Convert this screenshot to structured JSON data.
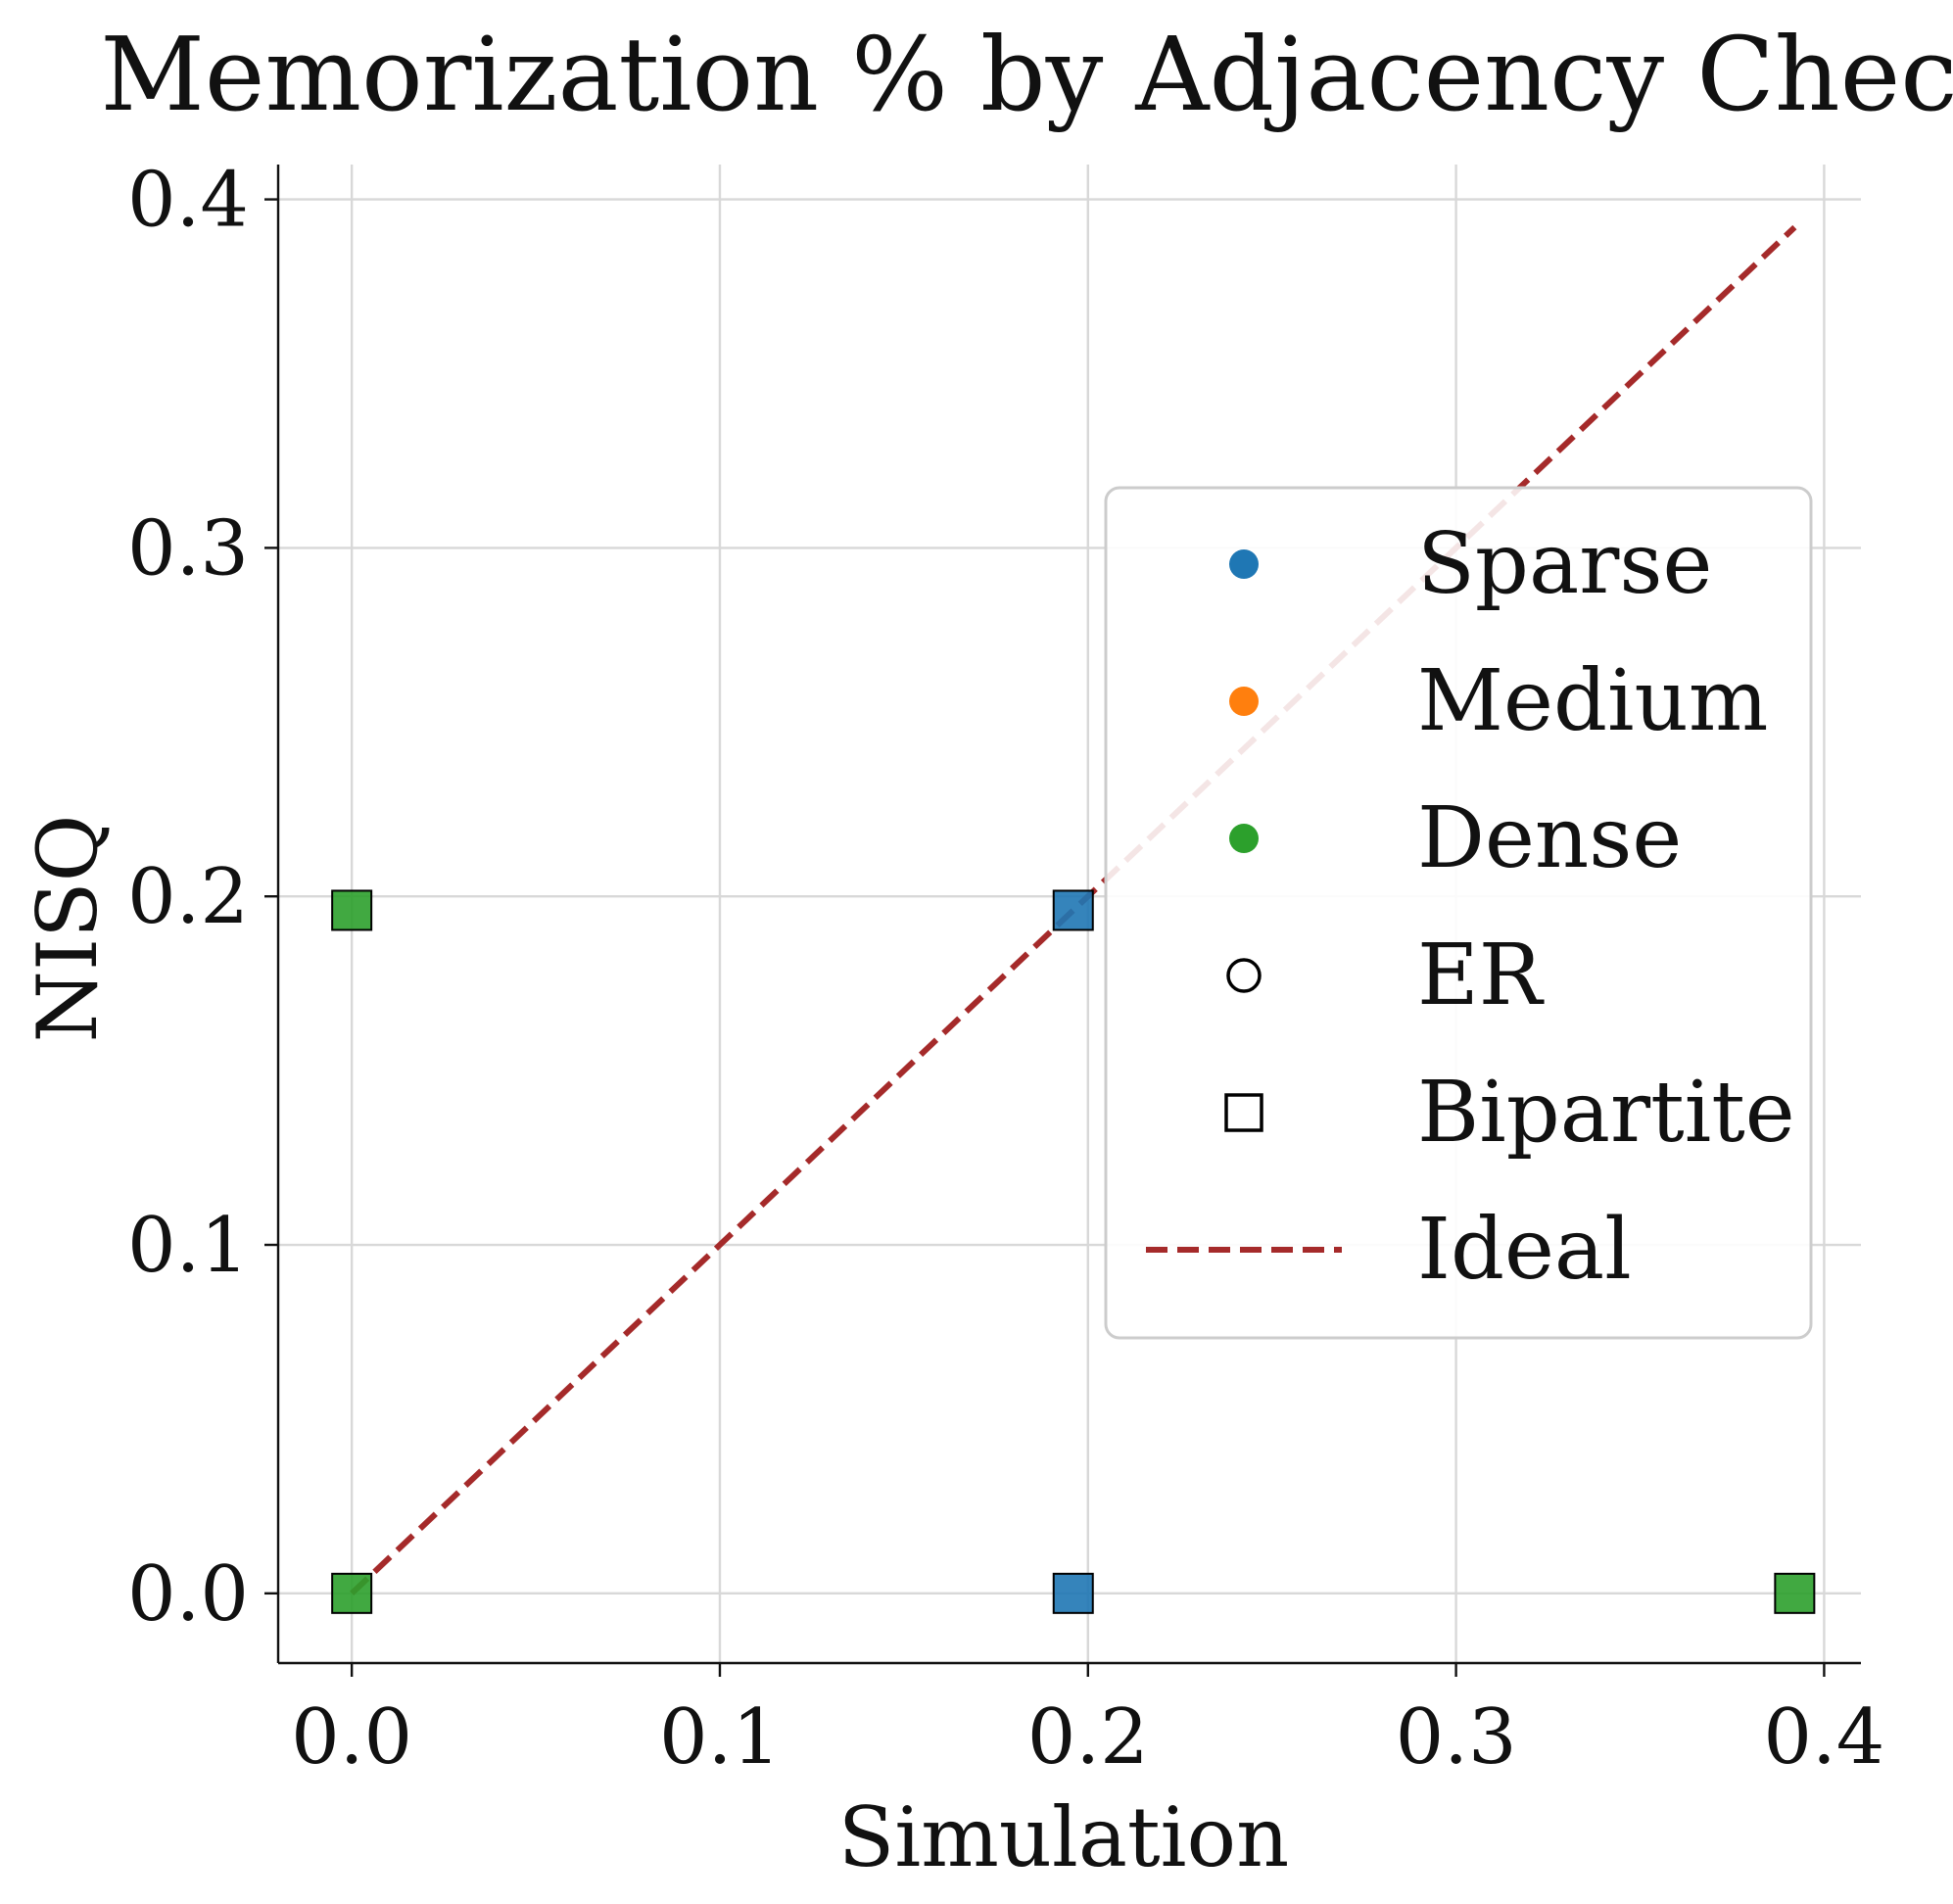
{
  "chart_data": {
    "type": "scatter",
    "title": "Memorization % by Adjacency Check",
    "xlabel": "Simulation",
    "ylabel": "NISQ",
    "xlim": [
      -0.02,
      0.41
    ],
    "ylim": [
      -0.02,
      0.41
    ],
    "xticks": [
      "0.0",
      "0.1",
      "0.2",
      "0.3",
      "0.4"
    ],
    "yticks": [
      "0.0",
      "0.1",
      "0.2",
      "0.3",
      "0.4"
    ],
    "grid": true,
    "legend_position": "center-right",
    "colors": {
      "Sparse": "#1f77b4",
      "Medium": "#ff7f0e",
      "Dense": "#2ca02c",
      "Ideal": "#a52a2a"
    },
    "series": [
      {
        "name": "Sparse",
        "marker": "square",
        "graph": "Bipartite",
        "points": [
          {
            "x": 0.196,
            "y": 0.196
          },
          {
            "x": 0.196,
            "y": 0.0
          }
        ]
      },
      {
        "name": "Dense",
        "marker": "square",
        "graph": "Bipartite",
        "points": [
          {
            "x": 0.0,
            "y": 0.196
          },
          {
            "x": 0.0,
            "y": 0.0
          },
          {
            "x": 0.392,
            "y": 0.0
          }
        ]
      }
    ],
    "ideal_line": {
      "name": "Ideal",
      "x": [
        0.0,
        0.392
      ],
      "y": [
        0.0,
        0.392
      ],
      "style": "dashed"
    },
    "legend": [
      {
        "label": "Sparse",
        "marker": "filled-circle",
        "color": "#1f77b4"
      },
      {
        "label": "Medium",
        "marker": "filled-circle",
        "color": "#ff7f0e"
      },
      {
        "label": "Dense",
        "marker": "filled-circle",
        "color": "#2ca02c"
      },
      {
        "label": "ER",
        "marker": "open-circle",
        "color": "#000000"
      },
      {
        "label": "Bipartite",
        "marker": "open-square",
        "color": "#000000"
      },
      {
        "label": "Ideal",
        "marker": "dashed-line",
        "color": "#a52a2a"
      }
    ]
  }
}
